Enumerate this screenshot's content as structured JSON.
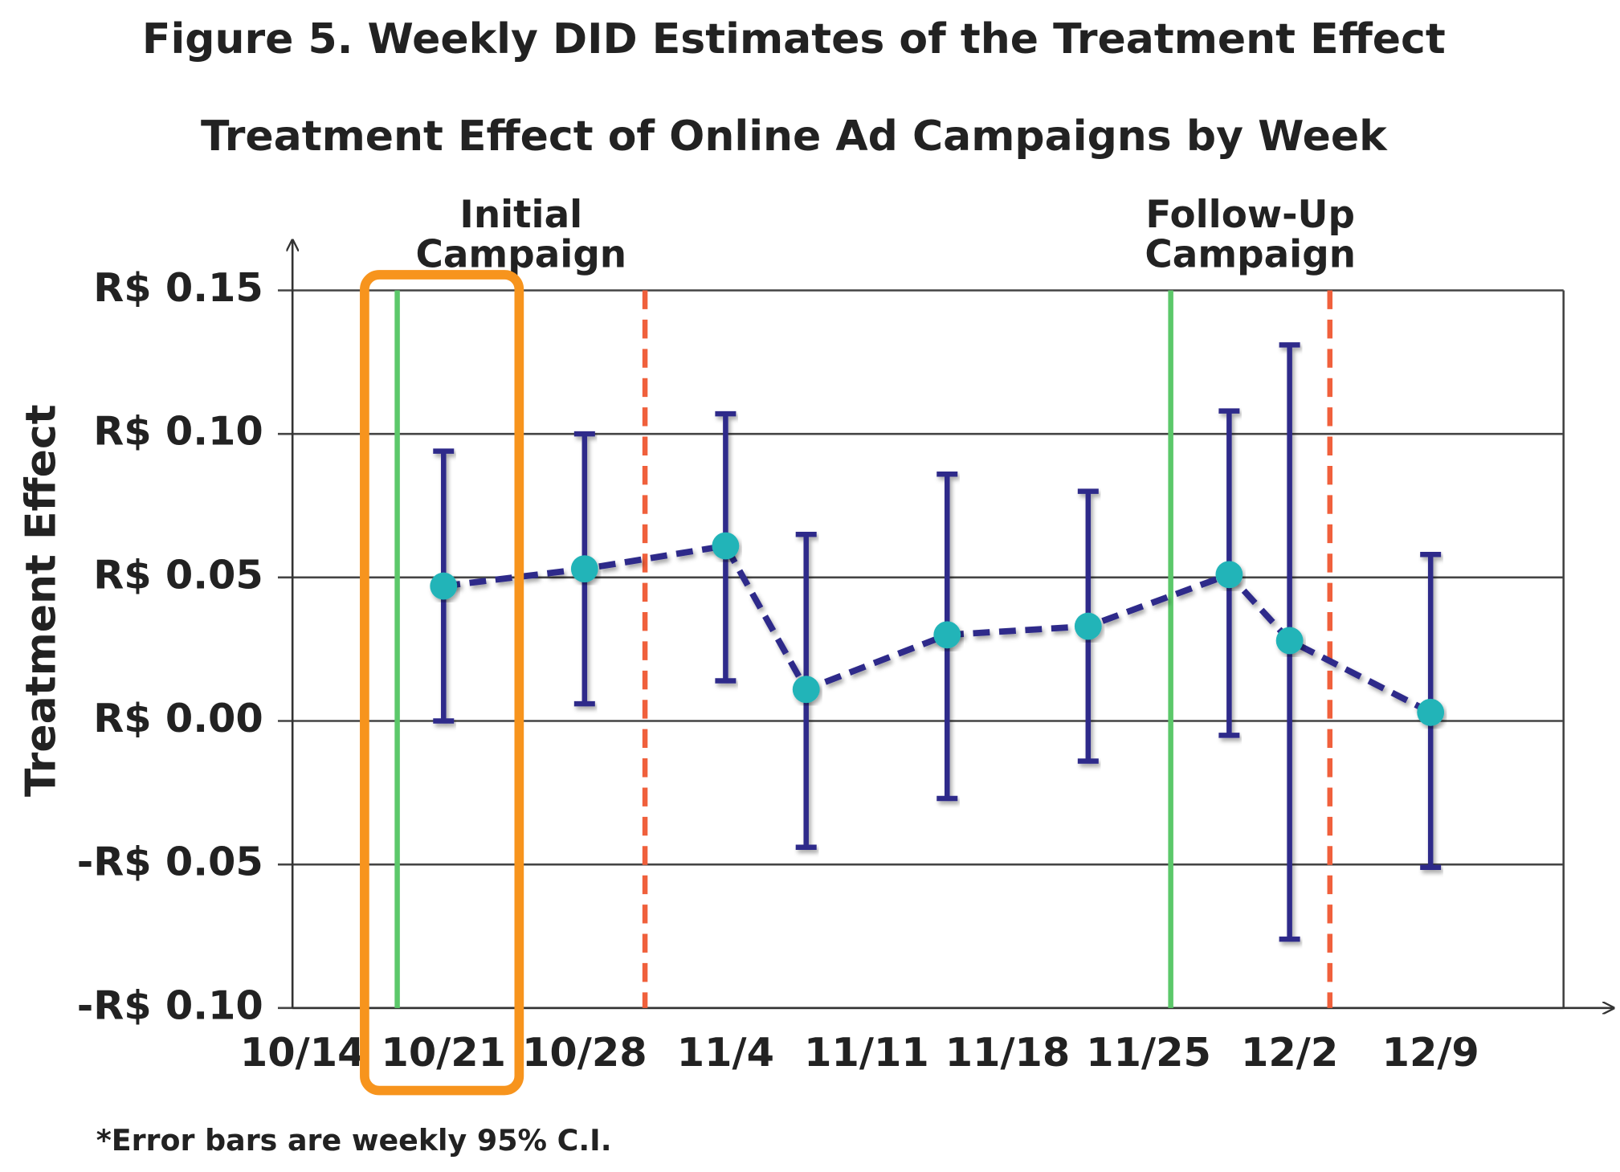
{
  "chart_data": {
    "type": "errorbar",
    "title": "Figure 5. Weekly DID Estimates of the Treatment Effect",
    "subtitle": "Treatment Effect of Online Ad Campaigns by Week",
    "y_label": "Treatment Effect",
    "footnote": "*Error bars are weekly 95% C.I.",
    "xlim": [
      -0.5,
      62.6
    ],
    "xticks": [
      {
        "value": 0,
        "label": "10/14"
      },
      {
        "value": 7,
        "label": "10/21"
      },
      {
        "value": 14,
        "label": "10/28"
      },
      {
        "value": 21,
        "label": "11/4"
      },
      {
        "value": 28,
        "label": "11/11"
      },
      {
        "value": 35,
        "label": "11/18"
      },
      {
        "value": 42,
        "label": "11/25"
      },
      {
        "value": 49,
        "label": "12/2"
      },
      {
        "value": 56,
        "label": "12/9"
      }
    ],
    "ylim": [
      -0.1,
      0.15
    ],
    "yticks": [
      {
        "value": -0.1,
        "label": "-R$ 0.10"
      },
      {
        "value": -0.05,
        "label": "-R$ 0.05"
      },
      {
        "value": 0,
        "label": "R$ 0.00"
      },
      {
        "value": 0.05,
        "label": "R$ 0.05"
      },
      {
        "value": 0.1,
        "label": "R$ 0.10"
      },
      {
        "value": 0.15,
        "label": "R$ 0.15"
      }
    ],
    "grid": true,
    "x": [
      7,
      14,
      21,
      25,
      32,
      39,
      46,
      49,
      56
    ],
    "series": [
      {
        "color": "#2f2b8a",
        "marker_color": "#20b4b8",
        "values": [
          0.047,
          0.053,
          0.061,
          0.011,
          0.03,
          0.033,
          0.051,
          0.028,
          0.003
        ],
        "low": [
          0.0,
          0.006,
          0.014,
          -0.044,
          -0.027,
          -0.014,
          -0.005,
          -0.076,
          -0.051
        ],
        "high": [
          0.094,
          0.1,
          0.107,
          0.065,
          0.086,
          0.08,
          0.108,
          0.131,
          0.058
        ]
      }
    ],
    "campaigns": [
      {
        "lines": [
          "Initial",
          "Campaign"
        ],
        "start": 4.7,
        "end": 17.0
      },
      {
        "lines": [
          "Follow-Up",
          "Campaign"
        ],
        "start": 43.1,
        "end": 51.0
      }
    ],
    "start_color": "#5cc86a",
    "end_color": "#f0603c"
  }
}
